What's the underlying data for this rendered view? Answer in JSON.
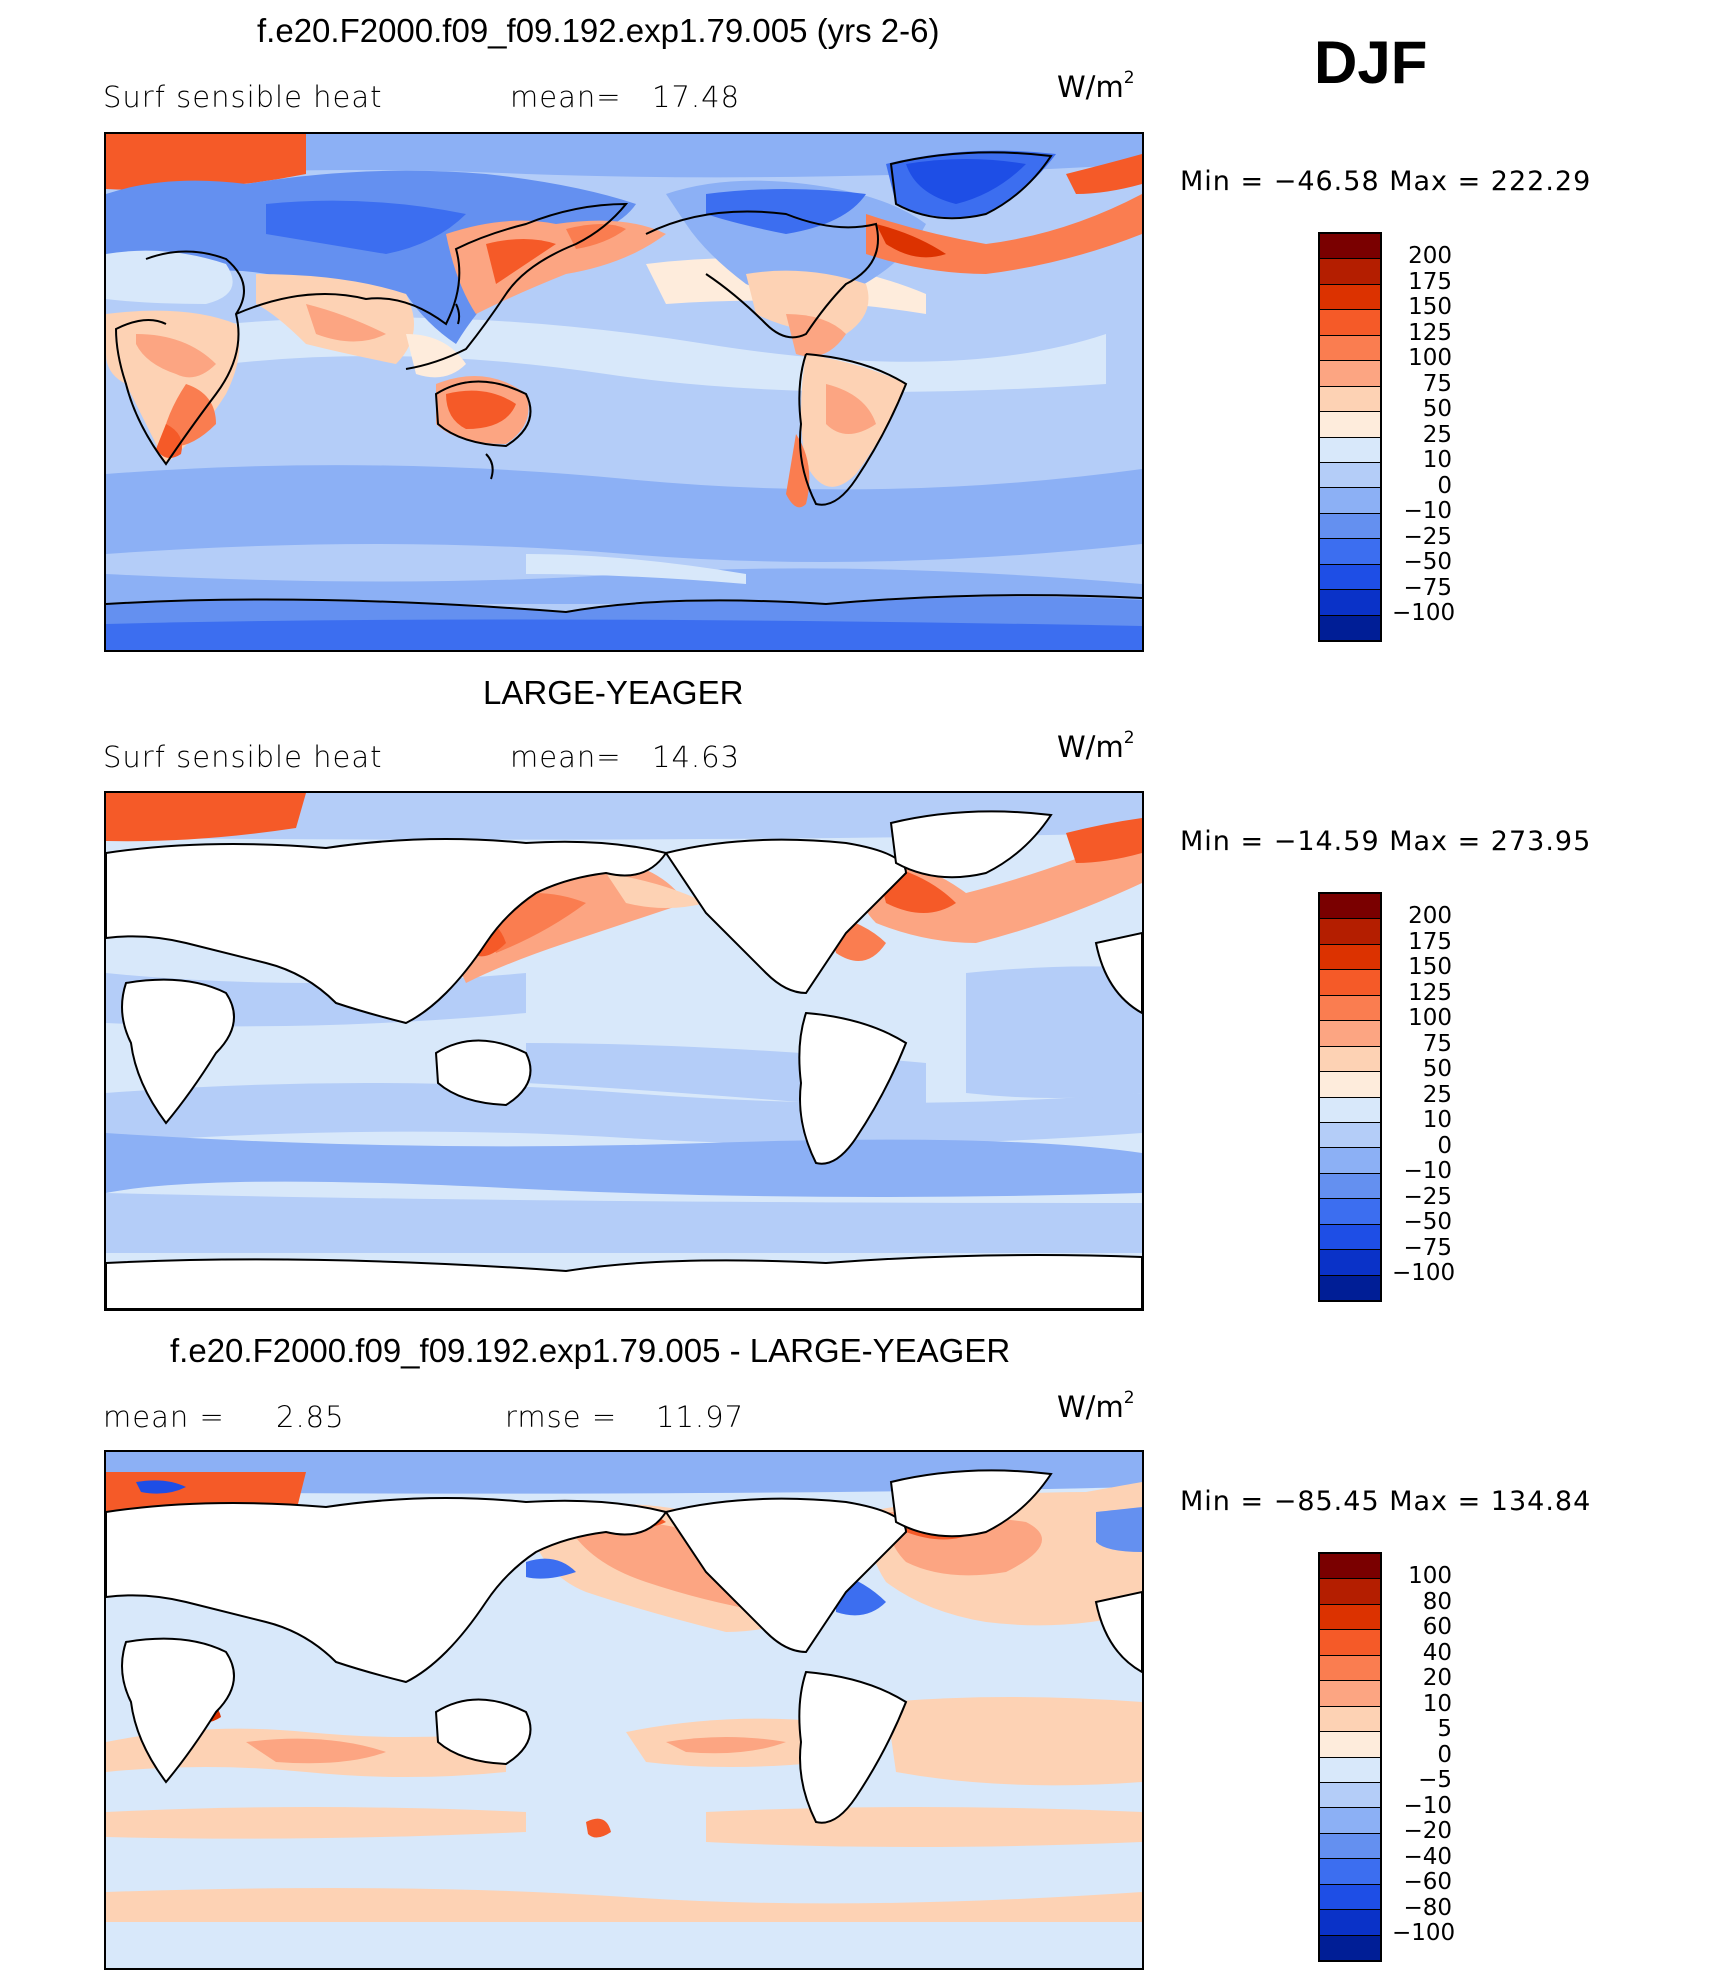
{
  "season": "DJF",
  "panels": [
    {
      "title": "f.e20.F2000.f09_f09.192.exp1.79.005 (yrs 2-6)",
      "left_label": "Surf sensible heat",
      "stat_label": "mean=",
      "stat_value": "17.48",
      "units": "W/m",
      "units_sup": "2",
      "min_max": "Min = −46.58 Max = 222.29",
      "colorbar": {
        "colors": [
          "#7a0000",
          "#b41e00",
          "#dc3200",
          "#f55a28",
          "#fa7d50",
          "#fca582",
          "#fdd2b4",
          "#feecdc",
          "#d8e8fa",
          "#b4cdf8",
          "#8cb0f5",
          "#6490f0",
          "#3c6ef0",
          "#1e4ee6",
          "#0a32c8",
          "#001e96"
        ],
        "labels": [
          "200",
          "175",
          "150",
          "125",
          "100",
          "75",
          "50",
          "25",
          "10",
          "0",
          "−10",
          "−25",
          "−50",
          "−75",
          "−100"
        ]
      },
      "map_data": {
        "field": "Surf sensible heat",
        "land_filled": true,
        "ocean_base": "#b4cdf8",
        "land_base": "#fdd2b4",
        "features": [
          {
            "region": "Greenland",
            "color": "#3c6ef0"
          },
          {
            "region": "Arctic Canada",
            "color": "#3c6ef0"
          },
          {
            "region": "Gulf Stream",
            "color": "#f55a28"
          },
          {
            "region": "Kuroshio",
            "color": "#f55a28"
          },
          {
            "region": "Australia",
            "color": "#f55a28"
          },
          {
            "region": "Southern Africa",
            "color": "#fa7d50"
          },
          {
            "region": "South America",
            "color": "#fca582"
          },
          {
            "region": "Siberia",
            "color": "#6490f0"
          },
          {
            "region": "Antarctica",
            "color": "#6490f0"
          },
          {
            "region": "Barents Sea",
            "color": "#f55a28"
          }
        ]
      }
    },
    {
      "title": "LARGE-YEAGER",
      "left_label": "Surf sensible heat",
      "stat_label": "mean=",
      "stat_value": "14.63",
      "units": "W/m",
      "units_sup": "2",
      "min_max": "Min = −14.59 Max = 273.95",
      "colorbar": {
        "colors": [
          "#7a0000",
          "#b41e00",
          "#dc3200",
          "#f55a28",
          "#fa7d50",
          "#fca582",
          "#fdd2b4",
          "#feecdc",
          "#d8e8fa",
          "#b4cdf8",
          "#8cb0f5",
          "#6490f0",
          "#3c6ef0",
          "#1e4ee6",
          "#0a32c8",
          "#001e96"
        ],
        "labels": [
          "200",
          "175",
          "150",
          "125",
          "100",
          "75",
          "50",
          "25",
          "10",
          "0",
          "−10",
          "−25",
          "−50",
          "−75",
          "−100"
        ]
      },
      "map_data": {
        "field": "Surf sensible heat",
        "land_filled": false,
        "ocean_base": "#d8e8fa",
        "features": [
          {
            "region": "Gulf Stream",
            "color": "#f55a28"
          },
          {
            "region": "Kuroshio",
            "color": "#fa7d50"
          },
          {
            "region": "Southern Ocean",
            "color": "#8cb0f5"
          },
          {
            "region": "Barents Sea",
            "color": "#f55a28"
          }
        ]
      }
    },
    {
      "title": "f.e20.F2000.f09_f09.192.exp1.79.005 - LARGE-YEAGER",
      "left_label": "mean =",
      "left_value": "2.85",
      "stat_label": "rmse =",
      "stat_value": "11.97",
      "units": "W/m",
      "units_sup": "2",
      "min_max": "Min = −85.45 Max = 134.84",
      "colorbar": {
        "colors": [
          "#7a0000",
          "#b41e00",
          "#dc3200",
          "#f55a28",
          "#fa7d50",
          "#fca582",
          "#fdd2b4",
          "#feecdc",
          "#d8e8fa",
          "#b4cdf8",
          "#8cb0f5",
          "#6490f0",
          "#3c6ef0",
          "#1e4ee6",
          "#0a32c8",
          "#001e96"
        ],
        "labels": [
          "100",
          "80",
          "60",
          "40",
          "20",
          "10",
          "5",
          "0",
          "−5",
          "−10",
          "−20",
          "−40",
          "−60",
          "−80",
          "−100"
        ]
      },
      "map_data": {
        "field": "difference",
        "land_filled": false,
        "ocean_base": "#d8e8fa",
        "features": [
          {
            "region": "North Pacific",
            "color": "#fca582"
          },
          {
            "region": "North Atlantic",
            "color": "#f55a28"
          },
          {
            "region": "Southern Ocean",
            "color": "#fdd2b4"
          },
          {
            "region": "New Zealand",
            "color": "#dc3200"
          },
          {
            "region": "Madagascar",
            "color": "#dc3200"
          },
          {
            "region": "Sea of Okhotsk",
            "color": "#3c6ef0"
          }
        ]
      }
    }
  ]
}
